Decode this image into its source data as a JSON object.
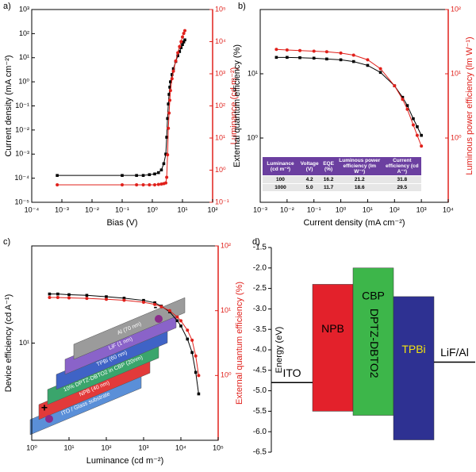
{
  "chart_data": [
    {
      "type": "line",
      "panel": "a)",
      "x_label": "Bias (V)",
      "y_label": "Current density (mA cm⁻²)",
      "y2_label": "Luminance (cd m⁻²)",
      "xlog": true,
      "ylog": true,
      "y2log": true,
      "xlim": [
        0.0001,
        100
      ],
      "ylim": [
        1e-05,
        1000
      ],
      "y2lim": [
        0.1,
        100000
      ],
      "xticks": [
        {
          "value": 0.0001,
          "label": "10⁻⁴"
        },
        {
          "value": 0.001,
          "label": "10⁻³"
        },
        {
          "value": 0.01,
          "label": "10⁻²"
        },
        {
          "value": 0.1,
          "label": "10⁻¹"
        },
        {
          "value": 1,
          "label": "10⁰"
        },
        {
          "value": 10,
          "label": "10¹"
        },
        {
          "value": 100,
          "label": "10²"
        }
      ],
      "yticks": [
        {
          "value": 1e-05,
          "label": "10⁻⁵"
        },
        {
          "value": 0.0001,
          "label": "10⁻⁴"
        },
        {
          "value": 0.001,
          "label": "10⁻³"
        },
        {
          "value": 0.01,
          "label": "10⁻²"
        },
        {
          "value": 0.1,
          "label": "10⁻¹"
        },
        {
          "value": 1,
          "label": "10⁰"
        },
        {
          "value": 10,
          "label": "10¹"
        },
        {
          "value": 100,
          "label": "10²"
        },
        {
          "value": 1000,
          "label": "10³"
        }
      ],
      "y2ticks": [
        {
          "value": 0.1,
          "label": "10⁻¹"
        },
        {
          "value": 1,
          "label": "10⁰"
        },
        {
          "value": 10,
          "label": "10¹"
        },
        {
          "value": 100,
          "label": "10²"
        },
        {
          "value": 1000,
          "label": "10³"
        },
        {
          "value": 10000,
          "label": "10⁴"
        },
        {
          "value": 100000,
          "label": "10⁵"
        }
      ],
      "x": [
        0.0007,
        0.1,
        0.3,
        0.5,
        0.8,
        1.2,
        1.6,
        2.0,
        2.4,
        2.8,
        3.0,
        3.2,
        3.4,
        3.6,
        3.8,
        4.0,
        4.5,
        5.0,
        6.0,
        7.0,
        8.0,
        9.0,
        10.0,
        11.0,
        12.0
      ],
      "series": [
        {
          "color": "#000000",
          "marker": "square",
          "values": [
            0.00013,
            0.00013,
            0.00013,
            0.00013,
            0.00014,
            0.00015,
            0.00017,
            0.00022,
            0.0004,
            0.001,
            0.005,
            0.03,
            0.12,
            0.3,
            0.6,
            1,
            2,
            3.5,
            7,
            12,
            18,
            26,
            35,
            45,
            55
          ]
        },
        {
          "color": "#e0201b",
          "marker": "circle",
          "axis": "y2",
          "values": [
            0.35,
            0.35,
            0.35,
            0.35,
            0.35,
            0.35,
            0.36,
            0.37,
            0.38,
            0.4,
            0.6,
            3,
            20,
            60,
            150,
            300,
            700,
            1200,
            2500,
            4500,
            7000,
            10000,
            14000,
            18000,
            22000
          ]
        }
      ]
    },
    {
      "type": "line",
      "panel": "b)",
      "x_label": "Current density (mA cm⁻²)",
      "y_label": "External quantum efficiency (%)",
      "y2_label": "Luminous power efficiency (lm W⁻¹)",
      "xlog": true,
      "ylog": true,
      "y2log": true,
      "xlim": [
        0.001,
        10000
      ],
      "ylim": [
        0.1,
        100
      ],
      "y2lim": [
        0.1,
        100
      ],
      "xticks": [
        {
          "value": 0.001,
          "label": "10⁻³"
        },
        {
          "value": 0.01,
          "label": "10⁻²"
        },
        {
          "value": 0.1,
          "label": "10⁻¹"
        },
        {
          "value": 1,
          "label": "10⁰"
        },
        {
          "value": 10,
          "label": "10¹"
        },
        {
          "value": 100,
          "label": "10²"
        },
        {
          "value": 1000,
          "label": "10³"
        },
        {
          "value": 10000,
          "label": "10⁴"
        }
      ],
      "yticks": [
        {
          "value": 1,
          "label": "10⁰"
        },
        {
          "value": 10,
          "label": "10¹"
        }
      ],
      "y2ticks": [
        {
          "value": 1,
          "label": "10⁰"
        },
        {
          "value": 10,
          "label": "10¹"
        },
        {
          "value": 100,
          "label": "10²"
        }
      ],
      "x": [
        0.004,
        0.01,
        0.03,
        0.1,
        0.3,
        1,
        3,
        10,
        30,
        100,
        200,
        300,
        500,
        700,
        1000
      ],
      "series": [
        {
          "color": "#000000",
          "marker": "square",
          "values": [
            18,
            18,
            17.8,
            17.5,
            17,
            16.5,
            15.5,
            13.5,
            10.5,
            6.5,
            4.3,
            3.2,
            2,
            1.5,
            1.1
          ]
        },
        {
          "color": "#e0201b",
          "marker": "circle",
          "axis": "y2",
          "values": [
            24,
            23.5,
            23,
            22.5,
            22,
            21,
            19.5,
            16.5,
            12,
            6.5,
            4,
            2.8,
            1.6,
            1.1,
            0.75
          ]
        }
      ],
      "table": {
        "header": [
          "Luminance (cd m⁻²)",
          "Voltage (V)",
          "EQE (%)",
          "Luminous power efficiency (lm W⁻¹)",
          "Current efficiency (cd A⁻¹)"
        ],
        "rows": [
          [
            "100",
            "4.2",
            "16.2",
            "21.2",
            "31.8"
          ],
          [
            "1000",
            "5.0",
            "11.7",
            "18.6",
            "29.5"
          ]
        ]
      }
    },
    {
      "type": "line",
      "panel": "c)",
      "x_label": "Luminance (cd m⁻²)",
      "y_label": "Device efficiency (cd A⁻¹)",
      "y2_label": "External quantum efficiency (%)",
      "xlog": true,
      "ylog": true,
      "y2log": true,
      "xlim": [
        1,
        100000
      ],
      "ylim": [
        1,
        100
      ],
      "y2lim": [
        0.1,
        100
      ],
      "xticks": [
        {
          "value": 1,
          "label": "10⁰"
        },
        {
          "value": 10,
          "label": "10¹"
        },
        {
          "value": 100,
          "label": "10²"
        },
        {
          "value": 1000,
          "label": "10³"
        },
        {
          "value": 10000,
          "label": "10⁴"
        },
        {
          "value": 100000,
          "label": "10⁵"
        }
      ],
      "yticks": [
        {
          "value": 10,
          "label": "10¹"
        }
      ],
      "y2ticks": [
        {
          "value": 1,
          "label": "10⁰"
        },
        {
          "value": 10,
          "label": "10¹"
        },
        {
          "value": 100,
          "label": "10²"
        }
      ],
      "x": [
        3,
        5,
        10,
        30,
        100,
        300,
        1000,
        2000,
        3000,
        5000,
        8000,
        10000,
        15000,
        20000,
        25000,
        30000
      ],
      "series": [
        {
          "color": "#000000",
          "marker": "square",
          "values": [
            32,
            32,
            31.5,
            31,
            30,
            29,
            27.5,
            26,
            24,
            21,
            17,
            15,
            11,
            8,
            5,
            3
          ]
        },
        {
          "color": "#e0201b",
          "marker": "circle",
          "axis": "y2",
          "values": [
            16,
            16,
            15.8,
            15.5,
            15,
            14.5,
            13.5,
            12.5,
            11.5,
            10,
            8,
            7,
            5,
            3.5,
            2,
            1
          ]
        }
      ],
      "inset": [
        "ITO / Glass substrate",
        "NPB (40 nm)",
        "10% DPTZ-DBTO2 in CBP (20nm)",
        "TPBi (60 nm)",
        "LiF (1 nm)",
        "Al (70 nm)"
      ],
      "inset_signs": [
        "+",
        "-"
      ]
    },
    {
      "type": "bar",
      "panel": "d)",
      "y_label": "Energy (eV)",
      "ylim": [
        -6.5,
        -1.5
      ],
      "yticks": [
        -1.5,
        {
          "value": -2,
          "label": "-2.0"
        },
        -2.5,
        {
          "value": -3,
          "label": "-3.0"
        },
        -3.5,
        {
          "value": -4,
          "label": "-4.0"
        },
        -4.5,
        {
          "value": -5,
          "label": "-5.0"
        },
        -5.5,
        {
          "value": -6,
          "label": "-6.0"
        },
        -6.5
      ],
      "categories": [
        "NPB",
        "DPTZ-DBTO2",
        "TPBi"
      ],
      "lumo": [
        -2.4,
        -2.0,
        -2.7
      ],
      "homo": [
        -5.5,
        -5.6,
        -6.2
      ],
      "colors": [
        "#e3212b",
        "#3db64a",
        "#2e3192"
      ],
      "label_colors": [
        "#000000",
        "#000000",
        "#f2e30f"
      ],
      "host_label": "CBP",
      "electrodes": [
        {
          "name": "ITO",
          "value": -4.8
        },
        {
          "name": "LiF/Al",
          "value": -4.3
        }
      ]
    }
  ]
}
